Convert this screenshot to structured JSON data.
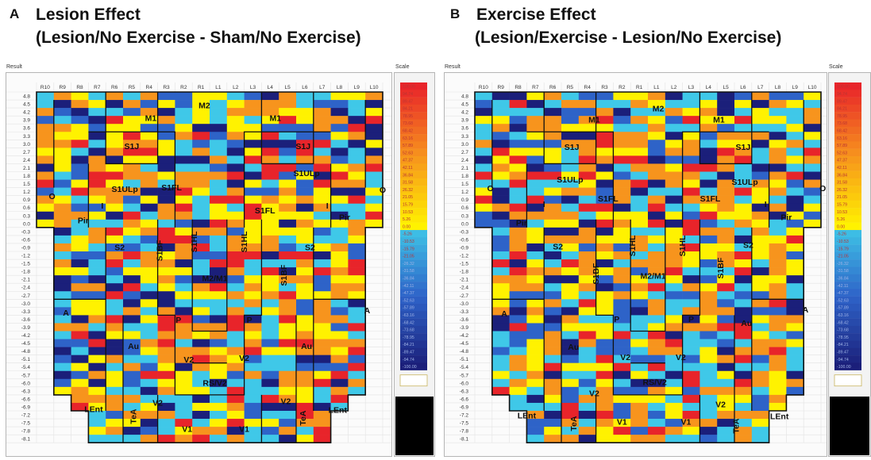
{
  "panels": [
    {
      "letter": "A",
      "title_line1": "Lesion Effect",
      "title_line2": "(Lesion/No Exercise - Sham/No Exercise)",
      "result_label": "Result",
      "scale_label": "Scale",
      "seed": 17,
      "regions": [
        {
          "label": "M2",
          "c": 9.2,
          "r": 1.2
        },
        {
          "label": "M1",
          "c": 6.1,
          "r": 2.8
        },
        {
          "label": "M1",
          "c": 13.3,
          "r": 2.8
        },
        {
          "label": "S1J",
          "c": 5.0,
          "r": 6.3
        },
        {
          "label": "S1J",
          "c": 14.9,
          "r": 6.3
        },
        {
          "label": "S1ULp",
          "c": 15.1,
          "r": 9.7
        },
        {
          "label": "S1ULp",
          "c": 4.6,
          "r": 11.7
        },
        {
          "label": "S1FL",
          "c": 7.3,
          "r": 11.5
        },
        {
          "label": "S1FL",
          "c": 12.7,
          "r": 14.4
        },
        {
          "label": "O",
          "c": 0.4,
          "r": 12.6
        },
        {
          "label": "O",
          "c": 19.5,
          "r": 11.8
        },
        {
          "label": "I",
          "c": 3.3,
          "r": 13.8
        },
        {
          "label": "I",
          "c": 16.3,
          "r": 13.8
        },
        {
          "label": "Pir",
          "c": 2.2,
          "r": 15.6
        },
        {
          "label": "Pir",
          "c": 17.3,
          "r": 15.2
        },
        {
          "label": "S2",
          "c": 4.3,
          "r": 19.0
        },
        {
          "label": "S2",
          "c": 15.3,
          "r": 19.0
        },
        {
          "label": "S1BF",
          "c": 6.6,
          "r": 19.4,
          "rot": true
        },
        {
          "label": "S1HL",
          "c": 8.6,
          "r": 18.3,
          "rot": true
        },
        {
          "label": "S1HL",
          "c": 11.5,
          "r": 18.3,
          "rot": true
        },
        {
          "label": "S1BF",
          "c": 13.8,
          "r": 22.5,
          "rot": true
        },
        {
          "label": "M2/M1",
          "c": 9.8,
          "r": 22.9
        },
        {
          "label": "A",
          "c": 1.2,
          "r": 27.2
        },
        {
          "label": "A",
          "c": 18.6,
          "r": 26.9
        },
        {
          "label": "P",
          "c": 7.7,
          "r": 28.1
        },
        {
          "label": "P",
          "c": 11.8,
          "r": 28.1
        },
        {
          "label": "Au",
          "c": 5.1,
          "r": 31.4
        },
        {
          "label": "Au",
          "c": 15.1,
          "r": 31.4
        },
        {
          "label": "V2",
          "c": 8.3,
          "r": 33.1
        },
        {
          "label": "V2",
          "c": 11.5,
          "r": 32.9
        },
        {
          "label": "RS/V2",
          "c": 9.8,
          "r": 36.0
        },
        {
          "label": "V2",
          "c": 13.9,
          "r": 38.3
        },
        {
          "label": "V2",
          "c": 6.5,
          "r": 38.5
        },
        {
          "label": "LEnt",
          "c": 2.8,
          "r": 39.3
        },
        {
          "label": "LEnt",
          "c": 16.9,
          "r": 39.4
        },
        {
          "label": "TeA",
          "c": 5.1,
          "r": 40.2,
          "rot": true
        },
        {
          "label": "TeA",
          "c": 14.9,
          "r": 40.4,
          "rot": true
        },
        {
          "label": "V1",
          "c": 8.2,
          "r": 41.8
        },
        {
          "label": "V1",
          "c": 11.5,
          "r": 41.8
        }
      ]
    },
    {
      "letter": "B",
      "title_line1": "Exercise Effect",
      "title_line2": "(Lesion/Exercise - Lesion/No Exercise)",
      "result_label": "Result",
      "scale_label": "Scale",
      "seed": 53,
      "regions": [
        {
          "label": "M2",
          "c": 10.1,
          "r": 1.6
        },
        {
          "label": "M1",
          "c": 6.4,
          "r": 3.0
        },
        {
          "label": "M1",
          "c": 13.6,
          "r": 3.0
        },
        {
          "label": "S1J",
          "c": 5.1,
          "r": 6.4
        },
        {
          "label": "S1J",
          "c": 15.0,
          "r": 6.4
        },
        {
          "label": "S1ULp",
          "c": 5.0,
          "r": 10.5
        },
        {
          "label": "S1ULp",
          "c": 15.1,
          "r": 10.8
        },
        {
          "label": "S1FL",
          "c": 7.2,
          "r": 12.9
        },
        {
          "label": "S1FL",
          "c": 13.1,
          "r": 12.9
        },
        {
          "label": "O",
          "c": 0.4,
          "r": 11.6
        },
        {
          "label": "O",
          "c": 19.6,
          "r": 11.6
        },
        {
          "label": "I",
          "c": 3.5,
          "r": 13.6
        },
        {
          "label": "I",
          "c": 16.3,
          "r": 13.6
        },
        {
          "label": "Pir",
          "c": 2.2,
          "r": 15.9
        },
        {
          "label": "Pir",
          "c": 17.5,
          "r": 15.2
        },
        {
          "label": "S2",
          "c": 4.3,
          "r": 18.9
        },
        {
          "label": "S2",
          "c": 15.3,
          "r": 18.7
        },
        {
          "label": "S1HL",
          "c": 8.6,
          "r": 18.8,
          "rot": true
        },
        {
          "label": "S1HL",
          "c": 11.5,
          "r": 18.8,
          "rot": true
        },
        {
          "label": "S1BF",
          "c": 6.5,
          "r": 22.3,
          "rot": true
        },
        {
          "label": "S1BF",
          "c": 13.7,
          "r": 21.6,
          "rot": true
        },
        {
          "label": "M2/M1",
          "c": 9.8,
          "r": 22.6
        },
        {
          "label": "A",
          "c": 1.2,
          "r": 27.3
        },
        {
          "label": "A",
          "c": 18.6,
          "r": 26.8
        },
        {
          "label": "P",
          "c": 7.7,
          "r": 28.0
        },
        {
          "label": "P",
          "c": 12.0,
          "r": 28.0
        },
        {
          "label": "Au",
          "c": 5.2,
          "r": 31.5
        },
        {
          "label": "Au",
          "c": 15.2,
          "r": 28.5
        },
        {
          "label": "V2",
          "c": 8.2,
          "r": 32.8
        },
        {
          "label": "V2",
          "c": 11.4,
          "r": 32.8
        },
        {
          "label": "RS/V2",
          "c": 9.9,
          "r": 35.9
        },
        {
          "label": "V2",
          "c": 6.4,
          "r": 37.3
        },
        {
          "label": "V2",
          "c": 13.7,
          "r": 38.7
        },
        {
          "label": "LEnt",
          "c": 2.5,
          "r": 40.1
        },
        {
          "label": "LEnt",
          "c": 17.1,
          "r": 40.2
        },
        {
          "label": "TeA",
          "c": 5.2,
          "r": 41.1,
          "rot": true
        },
        {
          "label": "TeA",
          "c": 14.6,
          "r": 41.4,
          "rot": true
        },
        {
          "label": "V1",
          "c": 8.0,
          "r": 40.9
        },
        {
          "label": "V1",
          "c": 11.7,
          "r": 40.9
        }
      ]
    }
  ],
  "columns": [
    "R10",
    "R9",
    "R8",
    "R7",
    "R6",
    "R5",
    "R4",
    "R3",
    "R2",
    "R1",
    "L1",
    "L2",
    "L3",
    "L4",
    "L5",
    "L6",
    "L7",
    "L8",
    "L9",
    "L10"
  ],
  "rows": [
    "4.8",
    "4.5",
    "4.2",
    "3.9",
    "3.6",
    "3.3",
    "3.0",
    "2.7",
    "2.4",
    "2.1",
    "1.8",
    "1.5",
    "1.2",
    "0.9",
    "0.6",
    "0.3",
    "0.0",
    "-0.3",
    "-0.6",
    "-0.9",
    "-1.2",
    "-1.5",
    "-1.8",
    "-2.1",
    "-2.4",
    "-2.7",
    "-3.0",
    "-3.3",
    "-3.6",
    "-3.9",
    "-4.2",
    "-4.5",
    "-4.8",
    "-5.1",
    "-5.4",
    "-5.7",
    "-6.0",
    "-6.3",
    "-6.6",
    "-6.9",
    "-7.2",
    "-7.5",
    "-7.8",
    "-8.1"
  ],
  "scale_values": [
    "100.00",
    "94.74",
    "89.47",
    "84.21",
    "78.95",
    "73.68",
    "68.42",
    "63.16",
    "57.89",
    "52.63",
    "47.37",
    "42.11",
    "36.84",
    "31.58",
    "26.32",
    "21.05",
    "15.79",
    "10.53",
    "5.26",
    "0.00",
    "-5.26",
    "-10.53",
    "-15.79",
    "-21.05",
    "-26.32",
    "-31.58",
    "-36.84",
    "-42.11",
    "-47.37",
    "-52.63",
    "-57.89",
    "-63.16",
    "-68.42",
    "-73.68",
    "-78.95",
    "-84.21",
    "-89.47",
    "-94.74",
    "-100.00"
  ],
  "colors": {
    "positive_high": "#e8242a",
    "positive_mid": "#f7941d",
    "positive_low": "#fff200",
    "negative_low": "#3fc8e8",
    "negative_mid": "#2e63c8",
    "negative_high": "#1b1f7a",
    "outside": "#ffffff",
    "border": "#111111"
  }
}
